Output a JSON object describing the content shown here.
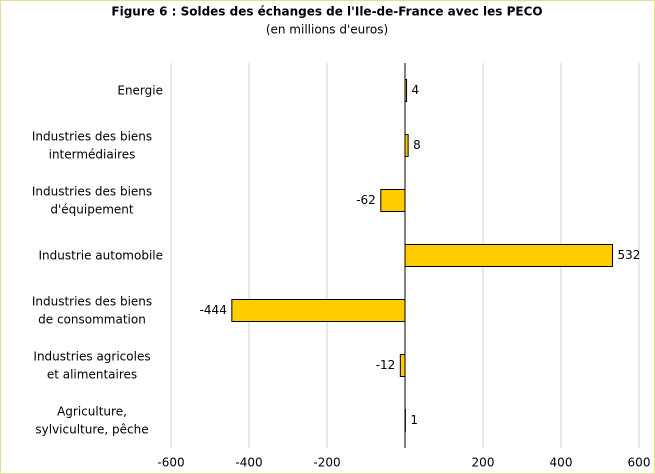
{
  "chart_data": {
    "type": "hbar",
    "title": "Figure 6 : Soldes des échanges de l'Ile-de-France avec les PECO",
    "subtitle": "(en millions d'euros)",
    "categories": [
      "Energie",
      "Industries des biens\nintermédiaires",
      "Industries des biens\nd'équipement",
      "Industrie automobile",
      "Industries des biens\nde consommation",
      "Industries agricoles\net alimentaires",
      "Agriculture,\nsylviculture, pêche"
    ],
    "values": [
      4,
      8,
      -62,
      532,
      -444,
      -12,
      1
    ],
    "color": "#ffcc00",
    "xlim": [
      -600,
      600
    ],
    "xticks": [
      -600,
      -400,
      -200,
      200,
      400,
      600
    ],
    "grid": true
  }
}
